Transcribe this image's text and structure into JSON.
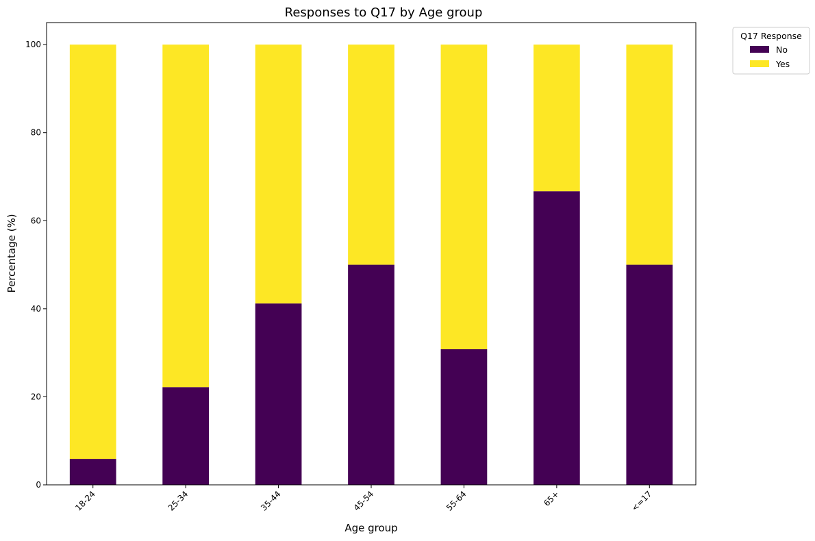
{
  "chart_data": {
    "type": "bar",
    "stacked": true,
    "title": "Responses to Q17 by Age group",
    "xlabel": "Age group",
    "ylabel": "Percentage (%)",
    "categories": [
      "18-24",
      "25-34",
      "35-44",
      "45-54",
      "55-64",
      "65+",
      "<=17"
    ],
    "series": [
      {
        "name": "No",
        "color": "#440154",
        "values": [
          5.9,
          22.2,
          41.2,
          50.0,
          30.8,
          66.7,
          50.0
        ]
      },
      {
        "name": "Yes",
        "color": "#fde725",
        "values": [
          94.1,
          77.8,
          58.8,
          50.0,
          69.2,
          33.3,
          50.0
        ]
      }
    ],
    "ylim": [
      0,
      105
    ],
    "yticks": [
      0,
      20,
      40,
      60,
      80,
      100
    ],
    "grid": false,
    "legend": {
      "title": "Q17 Response",
      "position": "outside-top-right"
    }
  }
}
